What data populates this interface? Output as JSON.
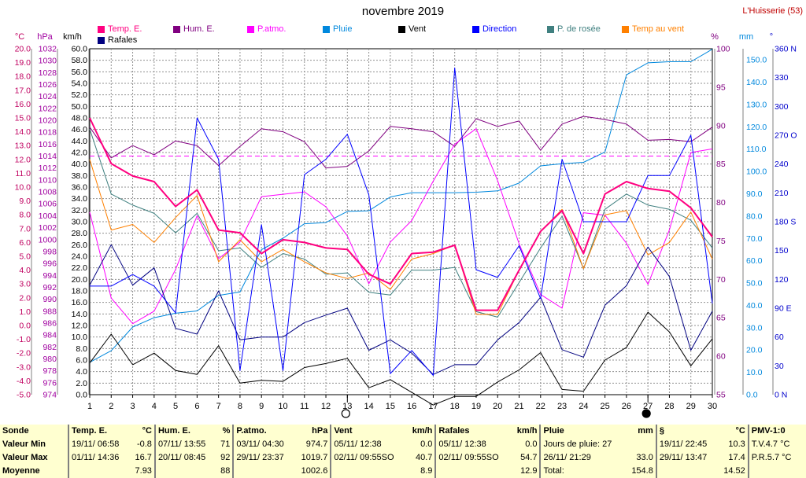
{
  "title": "novembre 2019",
  "station": "L'Huisserie (53)",
  "axis_units": {
    "temp": "°C",
    "hpa": "hPa",
    "kmh": "km/h",
    "pct": "%",
    "mm": "mm",
    "deg": "°"
  },
  "legend": [
    {
      "label": "Temp. E.",
      "color": "#ff0080"
    },
    {
      "label": "Hum. E.",
      "color": "#800080"
    },
    {
      "label": "P.atmo.",
      "color": "#ff00ff"
    },
    {
      "label": "Pluie",
      "color": "#0088dd"
    },
    {
      "label": "Vent",
      "color": "#000000"
    },
    {
      "label": "Direction",
      "color": "#0000ff"
    },
    {
      "label": "P. de rosée",
      "color": "#408080"
    },
    {
      "label": "Temp au vent",
      "color": "#ff8000"
    },
    {
      "label": "Rafales",
      "color": "#000080"
    }
  ],
  "chart_data": {
    "type": "line",
    "x": [
      1,
      2,
      3,
      4,
      5,
      6,
      7,
      8,
      9,
      10,
      11,
      12,
      13,
      14,
      15,
      16,
      17,
      18,
      19,
      20,
      21,
      22,
      23,
      24,
      25,
      26,
      27,
      28,
      29,
      30
    ],
    "axes": {
      "temp": {
        "label": "°C",
        "range": [
          -5.0,
          20.0
        ],
        "ticks": [
          "-5.0",
          "-4.0",
          "-3.0",
          "-2.0",
          "-1.0",
          "0.0",
          "1.0",
          "2.0",
          "3.0",
          "4.0",
          "5.0",
          "6.0",
          "7.0",
          "8.0",
          "9.0",
          "10.0",
          "11.0",
          "12.0",
          "13.0",
          "14.0",
          "15.0",
          "16.0",
          "17.0",
          "18.0",
          "19.0",
          "20.0"
        ]
      },
      "hpa": {
        "label": "hPa",
        "range": [
          974,
          1032
        ],
        "ticks": [
          "974",
          "976",
          "978",
          "980",
          "982",
          "984",
          "986",
          "988",
          "990",
          "992",
          "994",
          "996",
          "998",
          "1000",
          "1002",
          "1004",
          "1006",
          "1008",
          "1010",
          "1012",
          "1014",
          "1016",
          "1018",
          "1020",
          "1022",
          "1024",
          "1026",
          "1028",
          "1030",
          "1032"
        ]
      },
      "kmh": {
        "label": "km/h",
        "range": [
          0,
          60
        ],
        "ticks": [
          "0.0",
          "2.0",
          "4.0",
          "6.0",
          "8.0",
          "10.0",
          "12.0",
          "14.0",
          "16.0",
          "18.0",
          "20.0",
          "22.0",
          "24.0",
          "26.0",
          "28.0",
          "30.0",
          "32.0",
          "34.0",
          "36.0",
          "38.0",
          "40.0",
          "42.0",
          "44.0",
          "46.0",
          "48.0",
          "50.0",
          "52.0",
          "54.0",
          "56.0",
          "58.0",
          "60.0"
        ]
      },
      "pct": {
        "label": "%",
        "range": [
          55,
          100
        ],
        "ticks": [
          "55",
          "60",
          "65",
          "70",
          "75",
          "80",
          "85",
          "90",
          "95",
          "100"
        ]
      },
      "mm": {
        "label": "mm",
        "range": [
          0,
          155
        ],
        "ticks": [
          "0.0",
          "10.0",
          "20.0",
          "30.0",
          "40.0",
          "50.0",
          "60.0",
          "70.0",
          "80.0",
          "90.0",
          "100.0",
          "110.0",
          "120.0",
          "130.0",
          "140.0",
          "150.0"
        ]
      },
      "deg": {
        "label": "°",
        "range": [
          0,
          360
        ],
        "ticks": [
          "0 N",
          "30",
          "60",
          "90 E",
          "120",
          "150",
          "180 S",
          "210",
          "240",
          "270 O",
          "300",
          "330",
          "360 N"
        ]
      }
    },
    "moon_phases": [
      {
        "day": 13,
        "phase": "new"
      },
      {
        "day": 27,
        "phase": "full"
      }
    ],
    "dashed_line": {
      "axis": "hpa",
      "value": 1014
    },
    "series": [
      {
        "name": "Temp. E.",
        "axis": "temp",
        "color": "#ff0080",
        "width": 2,
        "values": [
          15.0,
          11.7,
          10.8,
          10.4,
          8.6,
          9.8,
          6.9,
          6.7,
          5.2,
          6.2,
          6.0,
          5.6,
          5.5,
          3.7,
          3.0,
          5.2,
          5.3,
          5.8,
          1.1,
          1.1,
          4.0,
          6.8,
          8.3,
          5.2,
          9.5,
          10.4,
          9.9,
          9.7,
          8.5,
          6.4
        ]
      },
      {
        "name": "Hum. E.",
        "axis": "pct",
        "color": "#800080",
        "width": 1,
        "values": [
          89.8,
          85.8,
          87.4,
          86.2,
          88.0,
          87.4,
          84.8,
          87.3,
          89.6,
          89.2,
          87.9,
          84.5,
          84.7,
          86.7,
          89.9,
          89.6,
          89.2,
          87.3,
          90.9,
          89.9,
          90.6,
          86.8,
          90.2,
          91.2,
          90.8,
          90.2,
          88.1,
          88.2,
          87.9,
          89.8
        ]
      },
      {
        "name": "P.atmo.",
        "axis": "hpa",
        "color": "#ff00ff",
        "width": 1,
        "values": [
          1004.6,
          990.2,
          985.9,
          988.0,
          995.0,
          1004.0,
          996.8,
          999.6,
          1007.2,
          1007.6,
          1008.0,
          1005.5,
          1000.6,
          992.6,
          999.6,
          1003.2,
          1009.8,
          1016.0,
          1018.6,
          1009.9,
          999.3,
          990.8,
          988.5,
          1004.5,
          1004.1,
          999.4,
          992.5,
          1001.6,
          1014.6,
          1015.2
        ]
      },
      {
        "name": "Pluie",
        "axis": "mm",
        "color": "#0088dd",
        "width": 1,
        "values": [
          14.5,
          19.7,
          30.3,
          34.5,
          36.5,
          37.5,
          44.5,
          46.0,
          65.0,
          70.1,
          76.6,
          77.1,
          82.1,
          82.4,
          88.6,
          90.5,
          90.5,
          90.5,
          90.7,
          91.3,
          94.8,
          102.5,
          103.5,
          104.1,
          108.7,
          143.3,
          148.7,
          149.2,
          149.2,
          154.8
        ]
      },
      {
        "name": "Vent",
        "axis": "kmh",
        "color": "#000000",
        "width": 1,
        "values": [
          5.5,
          10.5,
          5.2,
          7.2,
          4.2,
          3.5,
          8.5,
          2.0,
          2.5,
          2.3,
          4.7,
          5.4,
          6.3,
          1.2,
          2.6,
          0.4,
          -1.8,
          -0.3,
          -0.3,
          2.2,
          4.3,
          7.3,
          0.9,
          0.6,
          6.0,
          8.2,
          14.3,
          10.9,
          5.0,
          9.7
        ]
      },
      {
        "name": "Direction",
        "axis": "deg",
        "color": "#0000ff",
        "width": 1,
        "values": [
          113,
          113,
          125,
          113,
          85,
          288,
          245,
          25,
          177,
          25,
          229,
          245,
          271,
          208,
          22,
          46,
          20,
          340,
          130,
          122,
          155,
          100,
          245,
          180,
          180,
          180,
          228,
          228,
          270,
          95
        ]
      },
      {
        "name": "P. de rosée",
        "axis": "temp",
        "color": "#408080",
        "width": 1,
        "values": [
          14.2,
          9.5,
          8.7,
          8.1,
          6.7,
          8.1,
          5.4,
          5.6,
          4.2,
          5.2,
          4.8,
          3.7,
          3.8,
          2.4,
          2.2,
          4.0,
          4.0,
          4.2,
          1.0,
          0.6,
          3.1,
          5.6,
          7.9,
          4.1,
          8.4,
          9.5,
          8.7,
          8.4,
          7.6,
          5.6
        ]
      },
      {
        "name": "Temp au vent",
        "axis": "temp",
        "color": "#ff8000",
        "width": 1,
        "values": [
          12.0,
          6.9,
          7.3,
          6.0,
          7.8,
          9.4,
          4.6,
          6.2,
          4.6,
          5.5,
          4.6,
          3.8,
          3.4,
          3.8,
          2.6,
          4.8,
          5.2,
          5.8,
          0.8,
          0.8,
          4.0,
          6.8,
          8.4,
          4.1,
          8.0,
          8.3,
          5.1,
          6.0,
          8.2,
          4.8
        ]
      },
      {
        "name": "Rafales",
        "axis": "kmh",
        "color": "#000080",
        "width": 1,
        "values": [
          19.0,
          26.0,
          19.0,
          22.0,
          11.5,
          10.5,
          18.0,
          9.5,
          10.0,
          10.0,
          12.5,
          13.8,
          15.0,
          7.7,
          9.5,
          7.2,
          3.5,
          5.2,
          5.2,
          9.5,
          12.5,
          16.9,
          7.8,
          6.5,
          15.5,
          18.9,
          25.6,
          20.5,
          7.7,
          14.5
        ]
      }
    ]
  },
  "stats": {
    "rows": [
      "Sonde",
      "Valeur Min",
      "Valeur Max",
      "Moyenne"
    ],
    "blocks": [
      {
        "name": "Temp. E.",
        "unit": "°C",
        "min": [
          "19/11/ 06:58",
          "-0.8"
        ],
        "max": [
          "01/11/ 14:36",
          "16.7"
        ],
        "avg": "7.93"
      },
      {
        "name": "Hum. E.",
        "unit": "%",
        "min": [
          "07/11/ 13:55",
          "71"
        ],
        "max": [
          "20/11/ 08:45",
          "92"
        ],
        "avg": "88"
      },
      {
        "name": "P.atmo.",
        "unit": "hPa",
        "min": [
          "03/11/ 04:30",
          "974.7"
        ],
        "max": [
          "29/11/ 23:37",
          "1019.7"
        ],
        "avg": "1002.6"
      },
      {
        "name": "Vent",
        "unit": "km/h",
        "min": [
          "05/11/ 12:38",
          "0.0"
        ],
        "max": [
          "02/11/ 09:55SO",
          "40.7"
        ],
        "avg": "8.9"
      },
      {
        "name": "Rafales",
        "unit": "km/h",
        "min": [
          "05/11/ 12:38",
          "0.0"
        ],
        "max": [
          "02/11/ 09:55SO",
          "54.7"
        ],
        "avg": "12.9"
      },
      {
        "name": "Pluie",
        "unit": "mm",
        "min": [
          "Jours de pluie: 27",
          ""
        ],
        "max": [
          "26/11/ 21:29",
          "33.0"
        ],
        "avg_label": "Total:",
        "avg": "154.8"
      },
      {
        "name": "§",
        "unit": "°C",
        "min": [
          "19/11/ 22:45",
          "10.3"
        ],
        "max": [
          "29/11/ 13:47",
          "17.4"
        ],
        "avg": "14.52"
      },
      {
        "name": "PMV-1:0",
        "unit": "",
        "min": [
          "T.V.4.7 °C",
          ""
        ],
        "max": [
          "P.R.5.7 °C",
          ""
        ],
        "avg": ""
      }
    ]
  }
}
